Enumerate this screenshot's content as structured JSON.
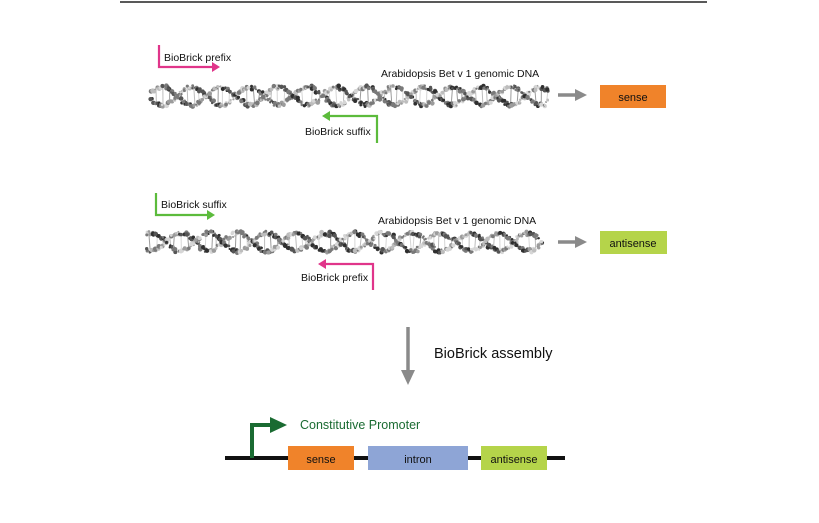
{
  "row1": {
    "forward_primer": "BioBrick prefix",
    "reverse_primer": "BioBrick suffix",
    "dna_label": "Arabidopsis Bet v 1 genomic DNA",
    "product": "sense"
  },
  "row2": {
    "forward_primer": "BioBrick suffix",
    "reverse_primer": "BioBrick prefix",
    "dna_label": "Arabidopsis Bet v 1 genomic DNA",
    "product": "antisense"
  },
  "assembly_label": "BioBrick assembly",
  "construct": {
    "promoter": "Constitutive Promoter",
    "parts": [
      "sense",
      "intron",
      "antisense"
    ]
  },
  "colors": {
    "prefix": "#e0358a",
    "suffix": "#5cbb3c",
    "sense": "#f0832a",
    "antisense": "#b5d44a",
    "intron": "#8ea5d6",
    "promoter": "#1a6b32",
    "arrow": "#8a8a8a"
  }
}
